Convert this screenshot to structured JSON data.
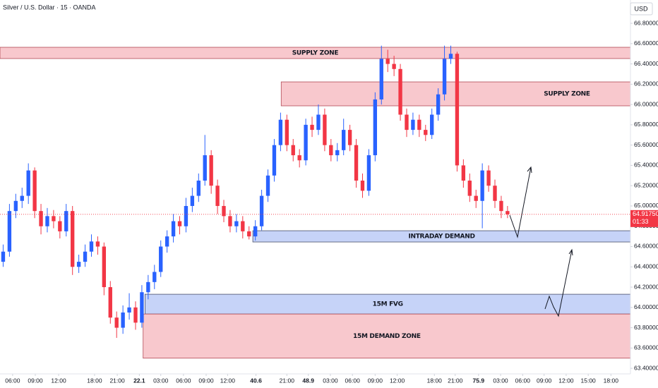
{
  "chart_data": {
    "type": "candlestick",
    "title": "Silver / U.S. Dollar · 15 · OANDA",
    "currency": "USD",
    "up_color": "#2962ff",
    "down_color": "#f23645",
    "grid": false,
    "xlim": [
      0,
      100
    ],
    "ylim": [
      63.345,
      67.03
    ],
    "xticks": [
      {
        "value": 2.0,
        "label": "06:00"
      },
      {
        "value": 5.6,
        "label": "09:00"
      },
      {
        "value": 9.3,
        "label": "12:00"
      },
      {
        "value": 15.0,
        "label": "18:00"
      },
      {
        "value": 18.6,
        "label": "21:00"
      },
      22.1,
      {
        "value": 25.5,
        "label": "03:00"
      },
      {
        "value": 29.1,
        "label": "06:00"
      },
      {
        "value": 32.7,
        "label": "09:00"
      },
      {
        "value": 36.1,
        "label": "12:00"
      },
      40.6,
      {
        "value": 45.5,
        "label": "21:00"
      },
      48.9,
      {
        "value": 52.4,
        "label": "03:00"
      },
      {
        "value": 55.9,
        "label": "06:00"
      },
      {
        "value": 59.5,
        "label": "09:00"
      },
      {
        "value": 63.0,
        "label": "12:00"
      },
      {
        "value": 68.9,
        "label": "18:00"
      },
      {
        "value": 72.2,
        "label": "21:00"
      },
      75.9,
      {
        "value": 79.4,
        "label": "03:00"
      },
      {
        "value": 82.9,
        "label": "06:00"
      },
      {
        "value": 86.3,
        "label": "09:00"
      },
      {
        "value": 89.8,
        "label": "12:00"
      },
      {
        "value": 93.3,
        "label": "15:00"
      },
      {
        "value": 96.9,
        "label": "18:00"
      }
    ],
    "yticks": [
      {
        "value": 66.8,
        "label": "66.80000"
      },
      {
        "value": 66.6,
        "label": "66.60000"
      },
      {
        "value": 66.4,
        "label": "66.40000"
      },
      {
        "value": 66.2,
        "label": "66.20000"
      },
      {
        "value": 66.0,
        "label": "66.00000"
      },
      {
        "value": 65.8,
        "label": "65.80000"
      },
      {
        "value": 65.6,
        "label": "65.60000"
      },
      {
        "value": 65.4,
        "label": "65.40000"
      },
      {
        "value": 65.2,
        "label": "65.20000"
      },
      {
        "value": 65.0,
        "label": "65.00000"
      },
      {
        "value": 64.8,
        "label": "64.80000"
      },
      {
        "value": 64.6,
        "label": "64.60000"
      },
      {
        "value": 64.4,
        "label": "64.40000"
      },
      {
        "value": 64.2,
        "label": "64.20000"
      },
      {
        "value": 64.0,
        "label": "64.00000"
      },
      {
        "value": 63.8,
        "label": "63.80000"
      },
      {
        "value": 63.6,
        "label": "63.60000"
      },
      {
        "value": 63.4,
        "label": "63.40000"
      }
    ],
    "x": [
      0.5,
      1.5,
      2.5,
      3.5,
      4.5,
      5.5,
      6.5,
      7.5,
      8.5,
      9.5,
      10.5,
      11.5,
      12.5,
      13.5,
      14.5,
      15.5,
      16.5,
      17.5,
      18.5,
      19.5,
      20.5,
      21.5,
      22.5,
      23.5,
      24.5,
      25.5,
      26.5,
      27.5,
      28.5,
      29.5,
      30.5,
      31.5,
      32.5,
      33.5,
      34.5,
      35.5,
      36.5,
      37.5,
      38.5,
      39.5,
      40.5,
      41.5,
      42.5,
      43.5,
      44.5,
      45.5,
      46.5,
      47.5,
      48.5,
      49.5,
      50.5,
      51.5,
      52.5,
      53.5,
      54.5,
      55.5,
      56.5,
      57.5,
      58.5,
      59.5,
      60.5,
      61.5,
      62.5,
      63.5,
      64.5,
      65.5,
      66.5,
      67.5,
      68.5,
      69.5,
      70.5,
      71.5,
      72.5,
      73.5,
      74.5,
      75.5,
      76.5,
      77.5,
      78.5,
      79.5,
      80.5
    ],
    "open": [
      64.45,
      64.55,
      64.95,
      65.05,
      65.1,
      65.35,
      64.95,
      64.8,
      64.9,
      64.85,
      64.75,
      64.95,
      64.4,
      64.45,
      64.55,
      64.65,
      64.6,
      64.2,
      63.9,
      63.8,
      63.95,
      64.0,
      63.85,
      64.15,
      64.25,
      64.35,
      64.6,
      64.7,
      64.85,
      64.8,
      65.0,
      65.1,
      65.25,
      65.5,
      65.2,
      65.0,
      64.9,
      64.8,
      64.85,
      64.75,
      64.7,
      64.8,
      65.1,
      65.3,
      65.6,
      65.85,
      65.6,
      65.5,
      65.45,
      65.8,
      65.75,
      65.9,
      65.6,
      65.5,
      65.55,
      65.75,
      65.6,
      65.25,
      65.15,
      65.5,
      66.05,
      66.45,
      66.4,
      66.35,
      65.9,
      65.75,
      65.85,
      65.75,
      65.7,
      65.9,
      66.1,
      66.45,
      66.5,
      65.4,
      65.25,
      65.1,
      65.05,
      65.35,
      65.2,
      65.05,
      64.95
    ],
    "high": [
      64.62,
      65.02,
      65.12,
      65.18,
      65.42,
      65.38,
      65.02,
      64.98,
      64.96,
      64.9,
      65.02,
      65.0,
      64.52,
      64.62,
      64.72,
      64.7,
      64.64,
      64.26,
      63.96,
      64.02,
      64.14,
      64.06,
      64.22,
      64.32,
      64.42,
      64.66,
      64.76,
      64.92,
      64.9,
      65.08,
      65.18,
      65.32,
      65.7,
      65.55,
      65.26,
      65.06,
      64.96,
      64.92,
      64.9,
      64.8,
      64.86,
      65.16,
      65.36,
      65.66,
      65.92,
      65.9,
      65.66,
      65.56,
      65.86,
      65.88,
      66.0,
      65.96,
      65.66,
      65.62,
      65.86,
      65.8,
      65.66,
      65.32,
      65.56,
      66.12,
      66.58,
      66.54,
      66.48,
      66.4,
      65.96,
      65.92,
      65.9,
      65.8,
      65.96,
      66.16,
      66.58,
      66.58,
      66.52,
      65.46,
      65.32,
      65.16,
      65.42,
      65.4,
      65.26,
      65.1,
      65.0
    ],
    "low": [
      64.4,
      64.5,
      64.88,
      64.98,
      65.02,
      64.88,
      64.72,
      64.74,
      64.78,
      64.68,
      64.7,
      64.32,
      64.34,
      64.4,
      64.5,
      64.52,
      64.12,
      63.84,
      63.7,
      63.74,
      63.88,
      63.78,
      63.8,
      64.08,
      64.18,
      64.3,
      64.54,
      64.64,
      64.72,
      64.74,
      64.94,
      65.04,
      65.2,
      65.12,
      64.92,
      64.84,
      64.74,
      64.74,
      64.68,
      64.67,
      64.66,
      64.76,
      65.04,
      65.24,
      65.54,
      65.54,
      65.44,
      65.38,
      65.4,
      65.68,
      65.7,
      65.54,
      65.44,
      65.44,
      65.5,
      65.54,
      65.18,
      65.08,
      65.1,
      65.44,
      66.0,
      66.32,
      66.28,
      65.84,
      65.68,
      65.7,
      65.68,
      65.64,
      65.66,
      65.84,
      66.04,
      66.4,
      65.34,
      65.18,
      65.04,
      64.98,
      64.78,
      65.14,
      64.98,
      64.88,
      64.88
    ],
    "close": [
      64.55,
      64.95,
      65.05,
      65.1,
      65.35,
      64.95,
      64.8,
      64.9,
      64.85,
      64.75,
      64.95,
      64.4,
      64.45,
      64.55,
      64.65,
      64.6,
      64.2,
      63.9,
      63.8,
      63.95,
      64.0,
      63.85,
      64.15,
      64.25,
      64.35,
      64.6,
      64.7,
      64.85,
      64.8,
      65.0,
      65.1,
      65.25,
      65.5,
      65.2,
      65.0,
      64.9,
      64.8,
      64.85,
      64.75,
      64.7,
      64.8,
      65.1,
      65.3,
      65.6,
      65.85,
      65.6,
      65.5,
      65.45,
      65.8,
      65.75,
      65.9,
      65.6,
      65.5,
      65.55,
      65.75,
      65.6,
      65.25,
      65.15,
      65.5,
      66.05,
      66.45,
      66.4,
      66.35,
      65.9,
      65.75,
      65.85,
      65.75,
      65.7,
      65.9,
      66.1,
      66.45,
      66.5,
      65.4,
      65.25,
      65.1,
      65.05,
      65.35,
      65.2,
      65.05,
      64.95,
      64.9175
    ],
    "last_price": {
      "value": 64.9175,
      "label": "64.91750"
    },
    "countdown": "01:33",
    "zones": [
      {
        "label": "SUPPLY ZONE",
        "x": [
          0,
          100
        ],
        "y": [
          66.453,
          66.564
        ],
        "kind": "supply"
      },
      {
        "label": "SUPPLY ZONE",
        "x": [
          44.6,
          100
        ],
        "y": [
          65.987,
          66.223
        ],
        "kind": "supply",
        "label_align": "right"
      },
      {
        "label": "INTRADAY DEMAND",
        "x": [
          40.1,
          100
        ],
        "y": [
          64.645,
          64.756
        ],
        "kind": "demand"
      },
      {
        "label": "15M FVG",
        "x": [
          23.0,
          100
        ],
        "y": [
          63.935,
          64.13
        ],
        "kind": "demand"
      },
      {
        "label": "15M DEMAND ZONE",
        "x": [
          22.7,
          100
        ],
        "y": [
          63.5,
          63.935
        ],
        "kind": "supply"
      }
    ]
  }
}
